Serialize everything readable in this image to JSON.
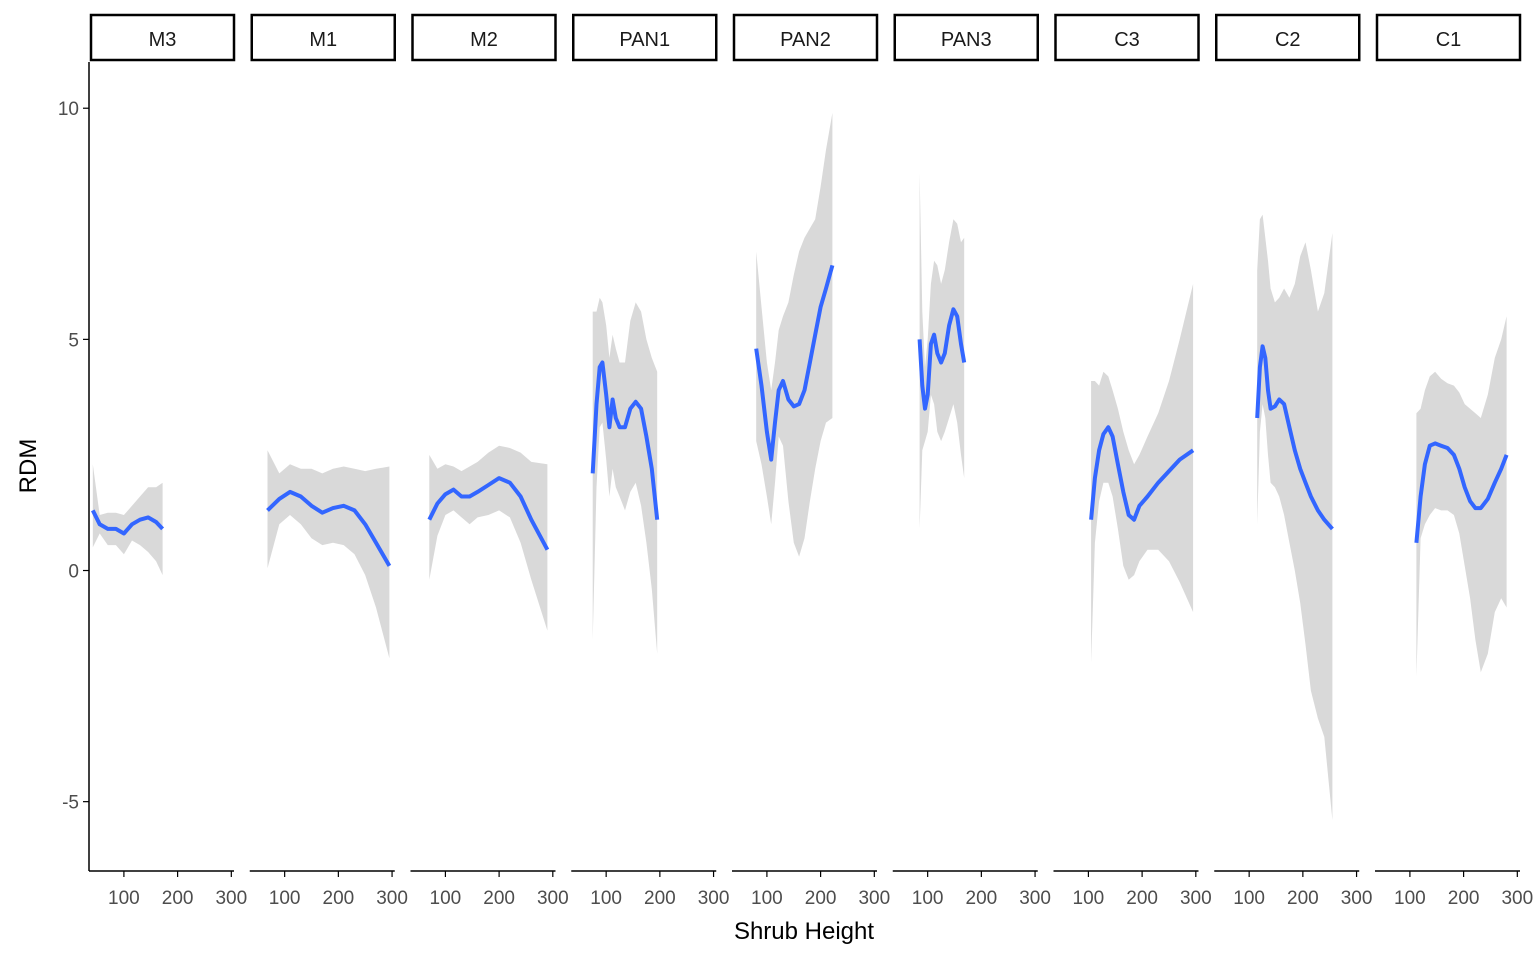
{
  "chart_data": {
    "type": "line",
    "facet_layout": "1 row of 9 panels",
    "xlabel": "Shrub Height",
    "ylabel": "RDM",
    "xlim": [
      35,
      305
    ],
    "ylim": [
      -6.5,
      11
    ],
    "x_ticks": [
      100,
      200,
      300
    ],
    "y_ticks": [
      -5,
      0,
      5,
      10
    ],
    "grid": false,
    "legend": "none",
    "colors": {
      "line": "#3366FF",
      "ribbon": "#D9D9D9",
      "axis": "#000000",
      "strip_border": "#000000"
    },
    "panels": [
      {
        "name": "M3",
        "x": [
          42,
          55,
          70,
          85,
          100,
          115,
          130,
          145,
          160,
          172
        ],
        "y": [
          1.3,
          1.0,
          0.9,
          0.9,
          0.8,
          1.0,
          1.1,
          1.15,
          1.05,
          0.9
        ],
        "ymin": [
          0.5,
          0.8,
          0.55,
          0.55,
          0.35,
          0.65,
          0.55,
          0.4,
          0.2,
          -0.1
        ],
        "ymax": [
          2.3,
          1.2,
          1.25,
          1.25,
          1.2,
          1.4,
          1.6,
          1.8,
          1.8,
          1.9
        ]
      },
      {
        "name": "M1",
        "x": [
          68,
          90,
          110,
          130,
          150,
          170,
          190,
          210,
          230,
          250,
          270,
          295
        ],
        "y": [
          1.3,
          1.55,
          1.7,
          1.6,
          1.4,
          1.25,
          1.35,
          1.4,
          1.3,
          1.0,
          0.6,
          0.1
        ],
        "ymin": [
          0.05,
          1.0,
          1.2,
          1.0,
          0.7,
          0.55,
          0.6,
          0.55,
          0.35,
          -0.1,
          -0.8,
          -1.9
        ],
        "ymax": [
          2.6,
          2.1,
          2.3,
          2.2,
          2.2,
          2.1,
          2.2,
          2.25,
          2.2,
          2.15,
          2.2,
          2.25
        ]
      },
      {
        "name": "M2",
        "x": [
          70,
          85,
          100,
          115,
          130,
          145,
          160,
          180,
          200,
          220,
          240,
          260,
          290
        ],
        "y": [
          1.1,
          1.45,
          1.65,
          1.75,
          1.6,
          1.6,
          1.7,
          1.85,
          2.0,
          1.9,
          1.6,
          1.1,
          0.45
        ],
        "ymin": [
          -0.2,
          0.75,
          1.2,
          1.3,
          1.15,
          1.0,
          1.15,
          1.2,
          1.3,
          1.15,
          0.6,
          -0.2,
          -1.3
        ],
        "ymax": [
          2.5,
          2.2,
          2.3,
          2.25,
          2.15,
          2.25,
          2.35,
          2.55,
          2.7,
          2.65,
          2.55,
          2.35,
          2.3
        ]
      },
      {
        "name": "PAN1",
        "x": [
          75,
          82,
          88,
          93,
          100,
          106,
          112,
          118,
          125,
          135,
          145,
          155,
          165,
          175,
          185,
          195
        ],
        "y": [
          2.1,
          3.6,
          4.4,
          4.5,
          3.8,
          3.1,
          3.7,
          3.3,
          3.1,
          3.1,
          3.5,
          3.65,
          3.5,
          2.9,
          2.2,
          1.1
        ],
        "ymin": [
          -1.5,
          1.8,
          3.1,
          3.2,
          2.4,
          1.6,
          2.2,
          1.8,
          1.6,
          1.3,
          1.7,
          1.9,
          1.4,
          0.6,
          -0.4,
          -1.8
        ],
        "ymax": [
          5.6,
          5.6,
          5.9,
          5.8,
          5.3,
          4.6,
          5.1,
          4.8,
          4.5,
          4.5,
          5.4,
          5.8,
          5.6,
          5.0,
          4.6,
          4.3
        ]
      },
      {
        "name": "PAN2",
        "x": [
          80,
          90,
          100,
          108,
          115,
          122,
          130,
          140,
          150,
          160,
          170,
          180,
          190,
          200,
          210,
          222
        ],
        "y": [
          4.8,
          4.0,
          3.0,
          2.4,
          3.2,
          3.9,
          4.1,
          3.7,
          3.55,
          3.6,
          3.9,
          4.5,
          5.1,
          5.7,
          6.1,
          6.6
        ],
        "ymin": [
          2.8,
          2.3,
          1.6,
          1.0,
          1.9,
          2.9,
          2.7,
          1.5,
          0.6,
          0.3,
          0.7,
          1.5,
          2.2,
          2.8,
          3.2,
          3.3
        ],
        "ymax": [
          6.9,
          5.7,
          4.5,
          3.9,
          4.5,
          5.2,
          5.5,
          5.8,
          6.4,
          6.9,
          7.2,
          7.4,
          7.6,
          8.3,
          9.1,
          9.9
        ]
      },
      {
        "name": "PAN3",
        "x": [
          85,
          90,
          95,
          100,
          106,
          112,
          118,
          125,
          132,
          140,
          148,
          155,
          162,
          168
        ],
        "y": [
          5.0,
          4.0,
          3.5,
          3.8,
          4.9,
          5.1,
          4.7,
          4.5,
          4.7,
          5.3,
          5.65,
          5.5,
          4.9,
          4.5
        ],
        "ymin": [
          0.9,
          2.6,
          2.8,
          3.0,
          3.8,
          3.6,
          3.0,
          2.8,
          3.0,
          3.3,
          3.6,
          3.2,
          2.5,
          2.0
        ],
        "ymax": [
          8.6,
          5.6,
          4.4,
          5.0,
          6.2,
          6.7,
          6.6,
          6.2,
          6.5,
          7.1,
          7.6,
          7.5,
          7.1,
          7.2
        ]
      },
      {
        "name": "C3",
        "x": [
          105,
          112,
          120,
          128,
          137,
          145,
          155,
          165,
          175,
          185,
          195,
          210,
          230,
          250,
          270,
          295
        ],
        "y": [
          1.1,
          2.0,
          2.6,
          2.95,
          3.1,
          2.9,
          2.3,
          1.7,
          1.2,
          1.1,
          1.4,
          1.6,
          1.9,
          2.15,
          2.4,
          2.6
        ],
        "ymin": [
          -2.0,
          0.6,
          1.5,
          1.9,
          1.9,
          1.6,
          0.9,
          0.1,
          -0.2,
          -0.1,
          0.2,
          0.45,
          0.45,
          0.2,
          -0.25,
          -0.9
        ],
        "ymax": [
          4.1,
          4.1,
          4.0,
          4.3,
          4.2,
          3.9,
          3.5,
          3.0,
          2.6,
          2.3,
          2.5,
          2.9,
          3.4,
          4.1,
          5.0,
          6.2
        ]
      },
      {
        "name": "C2",
        "x": [
          115,
          120,
          125,
          130,
          135,
          140,
          148,
          156,
          165,
          175,
          185,
          195,
          205,
          215,
          228,
          240,
          255
        ],
        "y": [
          3.3,
          4.4,
          4.85,
          4.6,
          3.9,
          3.5,
          3.55,
          3.7,
          3.6,
          3.1,
          2.6,
          2.2,
          1.9,
          1.6,
          1.3,
          1.1,
          0.9
        ],
        "ymin": [
          1.0,
          3.0,
          3.6,
          3.3,
          2.5,
          1.9,
          1.8,
          1.6,
          1.2,
          0.6,
          0.0,
          -0.7,
          -1.6,
          -2.6,
          -3.2,
          -3.6,
          -5.4
        ],
        "ymax": [
          6.5,
          7.6,
          7.7,
          7.2,
          6.7,
          6.1,
          5.8,
          5.9,
          6.1,
          5.9,
          6.2,
          6.8,
          7.1,
          6.5,
          5.6,
          6.0,
          7.3
        ]
      },
      {
        "name": "C1",
        "x": [
          112,
          120,
          128,
          137,
          147,
          158,
          170,
          182,
          192,
          202,
          212,
          222,
          232,
          245,
          258,
          270,
          280
        ],
        "y": [
          0.6,
          1.6,
          2.3,
          2.7,
          2.75,
          2.7,
          2.65,
          2.5,
          2.2,
          1.8,
          1.5,
          1.35,
          1.35,
          1.55,
          1.9,
          2.2,
          2.5
        ],
        "ymin": [
          -2.3,
          0.7,
          1.0,
          1.2,
          1.35,
          1.3,
          1.3,
          1.2,
          0.8,
          0.1,
          -0.6,
          -1.5,
          -2.2,
          -1.8,
          -0.9,
          -0.6,
          -0.8
        ],
        "ymax": [
          3.4,
          3.5,
          3.9,
          4.2,
          4.3,
          4.15,
          4.05,
          4.0,
          3.85,
          3.6,
          3.5,
          3.4,
          3.3,
          3.8,
          4.6,
          5.0,
          5.5
        ]
      }
    ]
  }
}
